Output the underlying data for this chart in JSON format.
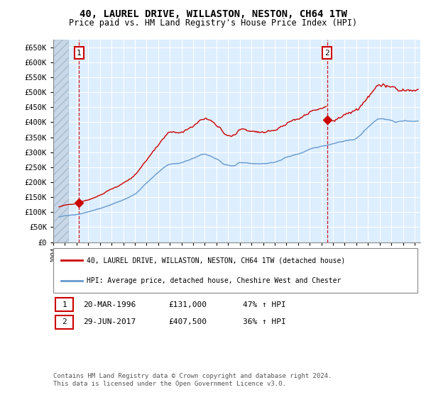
{
  "title": "40, LAUREL DRIVE, WILLASTON, NESTON, CH64 1TW",
  "subtitle": "Price paid vs. HM Land Registry's House Price Index (HPI)",
  "ylabel_ticks": [
    0,
    50000,
    100000,
    150000,
    200000,
    250000,
    300000,
    350000,
    400000,
    450000,
    500000,
    550000,
    600000,
    650000
  ],
  "ylim": [
    0,
    675000
  ],
  "xlim_start": 1994.0,
  "xlim_end": 2025.5,
  "sale1_date": "20-MAR-1996",
  "sale1_price": 131000,
  "sale1_label": "47% ↑ HPI",
  "sale1_x": 1996.22,
  "sale2_date": "29-JUN-2017",
  "sale2_price": 407500,
  "sale2_label": "36% ↑ HPI",
  "sale2_x": 2017.49,
  "legend_line1": "40, LAUREL DRIVE, WILLASTON, NESTON, CH64 1TW (detached house)",
  "legend_line2": "HPI: Average price, detached house, Cheshire West and Chester",
  "footer": "Contains HM Land Registry data © Crown copyright and database right 2024.\nThis data is licensed under the Open Government Licence v3.0.",
  "red_color": "#cc0000",
  "blue_color": "#6699cc",
  "bg_color": "#ddeeff",
  "hatch_facecolor": "#c8d8e8",
  "hatch_edgecolor": "#aabbcc",
  "grid_color": "#ffffff"
}
